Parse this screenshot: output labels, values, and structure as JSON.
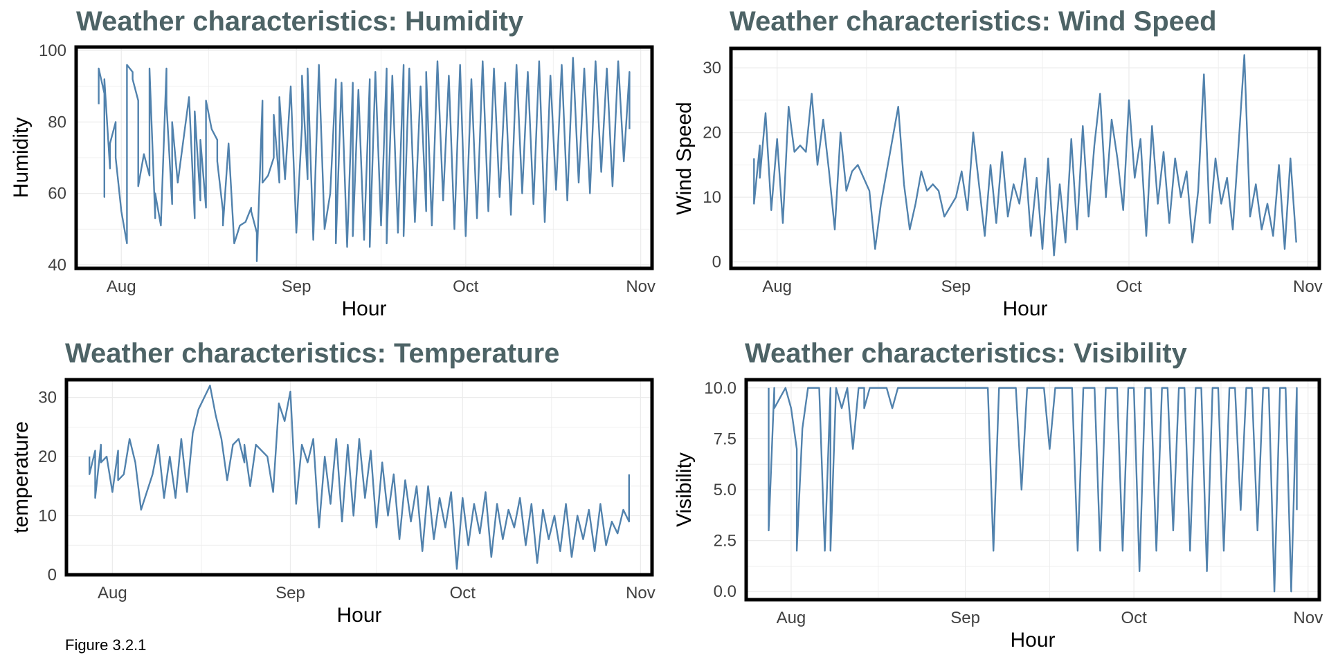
{
  "figure": {
    "caption": "Figure 3.2.1"
  },
  "colors": {
    "line": "#5182ad",
    "grid": "#ebebeb",
    "border": "#000000",
    "title": "#4d6366"
  },
  "chart_data": [
    {
      "id": "humidity",
      "type": "line",
      "title": "Weather characteristics: Humidity",
      "xlabel": "Hour",
      "ylabel": "Humidity",
      "x_ticks": [
        "Aug",
        "Sep",
        "Oct",
        "Nov"
      ],
      "x_tick_dates": [
        "2023-08-01",
        "2023-09-01",
        "2023-10-01",
        "2023-11-01"
      ],
      "xlim": [
        "2023-07-24",
        "2023-11-03"
      ],
      "y_ticks": [
        "40",
        "60",
        "80",
        "100"
      ],
      "ylim": [
        39,
        101
      ],
      "grid": true,
      "series": [
        {
          "x": [
            "2023-07-28",
            "2023-07-28",
            "2023-07-29",
            "2023-07-29",
            "2023-07-29",
            "2023-07-30",
            "2023-07-30",
            "2023-07-31",
            "2023-07-31",
            "2023-08-01",
            "2023-08-02",
            "2023-08-02",
            "2023-08-03",
            "2023-08-03",
            "2023-08-04",
            "2023-08-04",
            "2023-08-05",
            "2023-08-06",
            "2023-08-06",
            "2023-08-07",
            "2023-08-07",
            "2023-08-08",
            "2023-08-09",
            "2023-08-09",
            "2023-08-10",
            "2023-08-10",
            "2023-08-11",
            "2023-08-13",
            "2023-08-14",
            "2023-08-14",
            "2023-08-15",
            "2023-08-15",
            "2023-08-16",
            "2023-08-16",
            "2023-08-17",
            "2023-08-18",
            "2023-08-18",
            "2023-08-19",
            "2023-08-19",
            "2023-08-20",
            "2023-08-21",
            "2023-08-22",
            "2023-08-23",
            "2023-08-24",
            "2023-08-24",
            "2023-08-25",
            "2023-08-25",
            "2023-08-26",
            "2023-08-26",
            "2023-08-27",
            "2023-08-28",
            "2023-08-28",
            "2023-08-29",
            "2023-08-29",
            "2023-08-30",
            "2023-08-31",
            "2023-09-01",
            "2023-09-02",
            "2023-09-02",
            "2023-09-03",
            "2023-09-03",
            "2023-09-04",
            "2023-09-05",
            "2023-09-06",
            "2023-09-07",
            "2023-09-08",
            "2023-09-08",
            "2023-09-09",
            "2023-09-10",
            "2023-09-11",
            "2023-09-11",
            "2023-09-12",
            "2023-09-13",
            "2023-09-14",
            "2023-09-14",
            "2023-09-15",
            "2023-09-16",
            "2023-09-17",
            "2023-09-17",
            "2023-09-18",
            "2023-09-19",
            "2023-09-20",
            "2023-09-20",
            "2023-09-21",
            "2023-09-22",
            "2023-09-23",
            "2023-09-24",
            "2023-09-24",
            "2023-09-25",
            "2023-09-26",
            "2023-09-27",
            "2023-09-28",
            "2023-09-29",
            "2023-09-30",
            "2023-10-01",
            "2023-10-02",
            "2023-10-03",
            "2023-10-04",
            "2023-10-05",
            "2023-10-06",
            "2023-10-07",
            "2023-10-08",
            "2023-10-09",
            "2023-10-10",
            "2023-10-11",
            "2023-10-12",
            "2023-10-13",
            "2023-10-14",
            "2023-10-15",
            "2023-10-16",
            "2023-10-17",
            "2023-10-18",
            "2023-10-19",
            "2023-10-20",
            "2023-10-21",
            "2023-10-22",
            "2023-10-23",
            "2023-10-24",
            "2023-10-25",
            "2023-10-26",
            "2023-10-27",
            "2023-10-28",
            "2023-10-29",
            "2023-10-30",
            "2023-10-30"
          ],
          "y": [
            85,
            95,
            88,
            59,
            92,
            67,
            74,
            80,
            70,
            55,
            46,
            96,
            94,
            92,
            86,
            62,
            71,
            65,
            95,
            53,
            60,
            51,
            95,
            85,
            57,
            80,
            63,
            87,
            53,
            83,
            58,
            75,
            56,
            86,
            78,
            75,
            69,
            55,
            51,
            74,
            46,
            51,
            52,
            56,
            55,
            49,
            41,
            86,
            63,
            65,
            70,
            82,
            63,
            87,
            64,
            90,
            49,
            79,
            93,
            64,
            95,
            47,
            96,
            50,
            60,
            92,
            46,
            91,
            45,
            91,
            48,
            89,
            47,
            92,
            45,
            94,
            51,
            95,
            46,
            93,
            49,
            96,
            48,
            95,
            52,
            90,
            55,
            94,
            51,
            97,
            58,
            93,
            50,
            96,
            48,
            92,
            53,
            97,
            55,
            95,
            59,
            91,
            54,
            96,
            60,
            94,
            57,
            97,
            52,
            93,
            61,
            96,
            58,
            98,
            63,
            95,
            60,
            97,
            66,
            95,
            62,
            97,
            69,
            94,
            78
          ]
        }
      ]
    },
    {
      "id": "wind",
      "type": "line",
      "title": "Weather characteristics: Wind Speed",
      "xlabel": "Hour",
      "ylabel": "Wind Speed",
      "x_ticks": [
        "Aug",
        "Sep",
        "Oct",
        "Nov"
      ],
      "x_tick_dates": [
        "2023-08-01",
        "2023-09-01",
        "2023-10-01",
        "2023-11-01"
      ],
      "xlim": [
        "2023-07-24",
        "2023-11-03"
      ],
      "y_ticks": [
        "0",
        "10",
        "20",
        "30"
      ],
      "ylim": [
        -1,
        33
      ],
      "grid": true,
      "series": [
        {
          "x": [
            "2023-07-28",
            "2023-07-28",
            "2023-07-29",
            "2023-07-29",
            "2023-07-30",
            "2023-07-31",
            "2023-08-01",
            "2023-08-02",
            "2023-08-03",
            "2023-08-04",
            "2023-08-05",
            "2023-08-06",
            "2023-08-07",
            "2023-08-08",
            "2023-08-09",
            "2023-08-10",
            "2023-08-11",
            "2023-08-12",
            "2023-08-13",
            "2023-08-14",
            "2023-08-15",
            "2023-08-16",
            "2023-08-17",
            "2023-08-18",
            "2023-08-19",
            "2023-08-20",
            "2023-08-22",
            "2023-08-23",
            "2023-08-24",
            "2023-08-25",
            "2023-08-26",
            "2023-08-27",
            "2023-08-28",
            "2023-08-29",
            "2023-08-30",
            "2023-09-01",
            "2023-09-02",
            "2023-09-03",
            "2023-09-04",
            "2023-09-05",
            "2023-09-06",
            "2023-09-07",
            "2023-09-08",
            "2023-09-09",
            "2023-09-10",
            "2023-09-11",
            "2023-09-12",
            "2023-09-13",
            "2023-09-14",
            "2023-09-15",
            "2023-09-16",
            "2023-09-17",
            "2023-09-18",
            "2023-09-19",
            "2023-09-20",
            "2023-09-21",
            "2023-09-22",
            "2023-09-23",
            "2023-09-24",
            "2023-09-25",
            "2023-09-26",
            "2023-09-27",
            "2023-09-28",
            "2023-09-29",
            "2023-09-30",
            "2023-10-01",
            "2023-10-02",
            "2023-10-03",
            "2023-10-04",
            "2023-10-05",
            "2023-10-06",
            "2023-10-07",
            "2023-10-08",
            "2023-10-09",
            "2023-10-10",
            "2023-10-11",
            "2023-10-12",
            "2023-10-13",
            "2023-10-14",
            "2023-10-15",
            "2023-10-16",
            "2023-10-17",
            "2023-10-18",
            "2023-10-19",
            "2023-10-20",
            "2023-10-21",
            "2023-10-22",
            "2023-10-23",
            "2023-10-24",
            "2023-10-25",
            "2023-10-26",
            "2023-10-27",
            "2023-10-28",
            "2023-10-29",
            "2023-10-30"
          ],
          "y": [
            16,
            9,
            18,
            13,
            23,
            8,
            19,
            6,
            24,
            17,
            18,
            17,
            26,
            15,
            22,
            14,
            5,
            20,
            11,
            14,
            15,
            13,
            11,
            2,
            9,
            14,
            24,
            12,
            5,
            9,
            14,
            11,
            12,
            11,
            7,
            10,
            14,
            8,
            20,
            12,
            4,
            15,
            6,
            17,
            7,
            12,
            9,
            16,
            4,
            13,
            2,
            16,
            1,
            12,
            3,
            19,
            5,
            21,
            7,
            18,
            26,
            10,
            22,
            16,
            8,
            25,
            13,
            19,
            4,
            21,
            9,
            17,
            6,
            16,
            10,
            14,
            3,
            11,
            29,
            6,
            16,
            9,
            13,
            5,
            18,
            32,
            7,
            12,
            5,
            9,
            4,
            15,
            2,
            16,
            3
          ]
        }
      ]
    },
    {
      "id": "temperature",
      "type": "line",
      "title": "Weather characteristics: Temperature",
      "xlabel": "Hour",
      "ylabel": "temperature",
      "x_ticks": [
        "Aug",
        "Sep",
        "Oct",
        "Nov"
      ],
      "x_tick_dates": [
        "2023-08-01",
        "2023-09-01",
        "2023-10-01",
        "2023-11-01"
      ],
      "xlim": [
        "2023-07-24",
        "2023-11-03"
      ],
      "y_ticks": [
        "0",
        "10",
        "20",
        "30"
      ],
      "ylim": [
        0,
        33
      ],
      "grid": true,
      "series": [
        {
          "x": [
            "2023-07-28",
            "2023-07-28",
            "2023-07-29",
            "2023-07-29",
            "2023-07-30",
            "2023-07-30",
            "2023-07-31",
            "2023-08-01",
            "2023-08-02",
            "2023-08-02",
            "2023-08-03",
            "2023-08-04",
            "2023-08-05",
            "2023-08-06",
            "2023-08-08",
            "2023-08-09",
            "2023-08-10",
            "2023-08-11",
            "2023-08-12",
            "2023-08-13",
            "2023-08-14",
            "2023-08-15",
            "2023-08-16",
            "2023-08-17",
            "2023-08-18",
            "2023-08-19",
            "2023-08-20",
            "2023-08-21",
            "2023-08-22",
            "2023-08-23",
            "2023-08-24",
            "2023-08-24",
            "2023-08-25",
            "2023-08-26",
            "2023-08-28",
            "2023-08-29",
            "2023-08-30",
            "2023-08-31",
            "2023-09-01",
            "2023-09-02",
            "2023-09-03",
            "2023-09-04",
            "2023-09-05",
            "2023-09-06",
            "2023-09-07",
            "2023-09-08",
            "2023-09-09",
            "2023-09-10",
            "2023-09-11",
            "2023-09-12",
            "2023-09-13",
            "2023-09-14",
            "2023-09-15",
            "2023-09-16",
            "2023-09-17",
            "2023-09-18",
            "2023-09-19",
            "2023-09-20",
            "2023-09-21",
            "2023-09-22",
            "2023-09-23",
            "2023-09-24",
            "2023-09-25",
            "2023-09-26",
            "2023-09-27",
            "2023-09-28",
            "2023-09-29",
            "2023-09-30",
            "2023-10-01",
            "2023-10-02",
            "2023-10-03",
            "2023-10-04",
            "2023-10-05",
            "2023-10-06",
            "2023-10-07",
            "2023-10-08",
            "2023-10-09",
            "2023-10-10",
            "2023-10-11",
            "2023-10-12",
            "2023-10-13",
            "2023-10-14",
            "2023-10-15",
            "2023-10-16",
            "2023-10-17",
            "2023-10-18",
            "2023-10-19",
            "2023-10-20",
            "2023-10-21",
            "2023-10-22",
            "2023-10-23",
            "2023-10-24",
            "2023-10-25",
            "2023-10-26",
            "2023-10-27",
            "2023-10-28",
            "2023-10-29",
            "2023-10-30",
            "2023-10-30"
          ],
          "y": [
            20,
            17,
            21,
            13,
            22,
            19,
            20,
            14,
            21,
            16,
            17,
            23,
            19,
            11,
            17,
            22,
            13,
            20,
            13,
            23,
            14,
            24,
            28,
            30,
            32,
            27,
            23,
            16,
            22,
            23,
            19,
            22,
            15,
            22,
            20,
            14,
            29,
            26,
            31,
            12,
            22,
            19,
            23,
            8,
            20,
            12,
            23,
            9,
            22,
            10,
            23,
            13,
            21,
            8,
            19,
            10,
            17,
            6,
            16,
            9,
            15,
            4,
            15,
            6,
            13,
            8,
            14,
            1,
            13,
            5,
            12,
            7,
            14,
            3,
            12,
            6,
            11,
            8,
            13,
            5,
            12,
            2,
            11,
            6,
            10,
            4,
            12,
            3,
            10,
            6,
            11,
            4,
            12,
            5,
            9,
            7,
            11,
            9,
            17
          ]
        }
      ]
    },
    {
      "id": "visibility",
      "type": "line",
      "title": "Weather characteristics: Visibility",
      "xlabel": "Hour",
      "ylabel": "Visibility",
      "x_ticks": [
        "Aug",
        "Sep",
        "Oct",
        "Nov"
      ],
      "x_tick_dates": [
        "2023-08-01",
        "2023-09-01",
        "2023-10-01",
        "2023-11-01"
      ],
      "xlim": [
        "2023-07-24",
        "2023-11-03"
      ],
      "y_ticks": [
        "0.0",
        "2.5",
        "5.0",
        "7.5",
        "10.0"
      ],
      "ylim": [
        -0.4,
        10.4
      ],
      "grid": true,
      "series": [
        {
          "x": [
            "2023-07-28",
            "2023-07-28",
            "2023-07-29",
            "2023-07-29",
            "2023-07-31",
            "2023-08-01",
            "2023-08-02",
            "2023-08-02",
            "2023-08-03",
            "2023-08-04",
            "2023-08-06",
            "2023-08-07",
            "2023-08-08",
            "2023-08-08",
            "2023-08-09",
            "2023-08-10",
            "2023-08-11",
            "2023-08-12",
            "2023-08-13",
            "2023-08-14",
            "2023-08-14",
            "2023-08-15",
            "2023-08-16",
            "2023-08-17",
            "2023-08-18",
            "2023-08-19",
            "2023-08-20",
            "2023-08-25",
            "2023-08-26",
            "2023-08-27",
            "2023-09-05",
            "2023-09-06",
            "2023-09-07",
            "2023-09-10",
            "2023-09-11",
            "2023-09-12",
            "2023-09-15",
            "2023-09-16",
            "2023-09-17",
            "2023-09-20",
            "2023-09-21",
            "2023-09-22",
            "2023-09-24",
            "2023-09-25",
            "2023-09-26",
            "2023-09-28",
            "2023-09-29",
            "2023-09-30",
            "2023-10-01",
            "2023-10-02",
            "2023-10-03",
            "2023-10-04",
            "2023-10-05",
            "2023-10-06",
            "2023-10-07",
            "2023-10-08",
            "2023-10-09",
            "2023-10-10",
            "2023-10-11",
            "2023-10-12",
            "2023-10-13",
            "2023-10-14",
            "2023-10-15",
            "2023-10-16",
            "2023-10-17",
            "2023-10-18",
            "2023-10-19",
            "2023-10-20",
            "2023-10-21",
            "2023-10-22",
            "2023-10-23",
            "2023-10-24",
            "2023-10-25",
            "2023-10-26",
            "2023-10-27",
            "2023-10-28",
            "2023-10-29",
            "2023-10-30",
            "2023-10-30"
          ],
          "y": [
            10,
            3,
            10,
            9,
            10,
            9,
            7,
            2,
            8,
            10,
            10,
            2,
            10,
            2,
            10,
            9,
            10,
            7,
            10,
            10,
            9,
            10,
            10,
            10,
            10,
            9,
            10,
            10,
            10,
            10,
            10,
            2,
            10,
            10,
            5,
            10,
            10,
            7,
            10,
            10,
            2,
            10,
            10,
            2,
            10,
            10,
            2,
            10,
            10,
            1,
            10,
            10,
            2,
            10,
            10,
            3,
            10,
            10,
            2,
            10,
            10,
            1,
            10,
            10,
            2,
            10,
            10,
            4,
            10,
            10,
            3,
            10,
            10,
            0,
            10,
            10,
            0,
            10,
            4
          ]
        }
      ]
    }
  ]
}
